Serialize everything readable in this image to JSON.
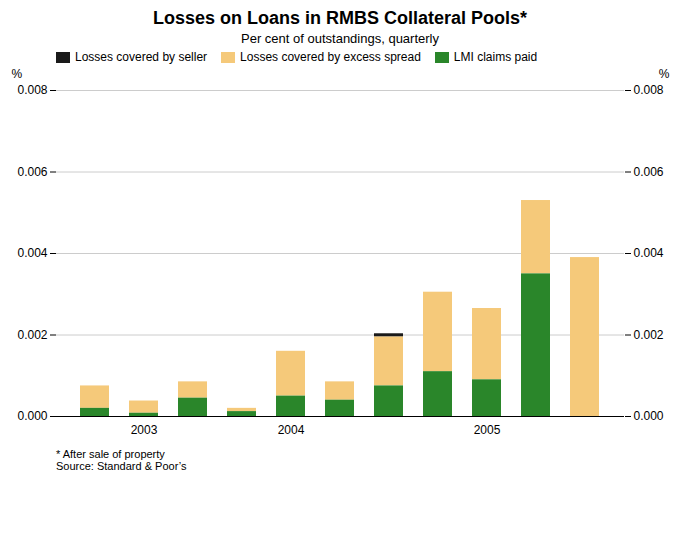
{
  "chart_data": {
    "type": "bar",
    "stacked": true,
    "title": "Losses on Loans in RMBS Collateral Pools*",
    "subtitle": "Per cent of outstandings, quarterly",
    "ylabel": "%",
    "y2label": "%",
    "notes": [
      "* After sale of property",
      "Source: Standard & Poor’s"
    ],
    "categories": [
      null,
      "2003",
      null,
      null,
      "2004",
      null,
      null,
      null,
      "2005",
      null,
      null
    ],
    "series": [
      {
        "name": "Losses covered by seller",
        "color": "#1a1a1a",
        "values": [
          0.0,
          0.0,
          0.0,
          0.0,
          0.0,
          0.0,
          8e-05,
          0.0,
          0.0,
          0.0,
          0.0
        ]
      },
      {
        "name": "Losses covered by excess spread",
        "color": "#f5c97a",
        "values": [
          0.00055,
          0.0003,
          0.0004,
          8e-05,
          0.0011,
          0.00045,
          0.0012,
          0.00195,
          0.00175,
          0.0018,
          0.0039
        ]
      },
      {
        "name": "LMI claims paid",
        "color": "#2a862a",
        "values": [
          0.0002,
          8e-05,
          0.00045,
          0.00012,
          0.0005,
          0.0004,
          0.00075,
          0.0011,
          0.0009,
          0.0035,
          0.0
        ]
      }
    ],
    "ylim": [
      0,
      0.008
    ],
    "yticks": [
      {
        "value": 0,
        "label": "0.000"
      },
      0.002,
      0.004,
      0.006,
      0.008
    ],
    "y2lim": [
      0,
      0.008
    ],
    "y2ticks": [
      {
        "value": 0,
        "label": "0.000"
      },
      0.002,
      0.004,
      0.006,
      0.008
    ],
    "grid": true,
    "legend": "upper left"
  }
}
